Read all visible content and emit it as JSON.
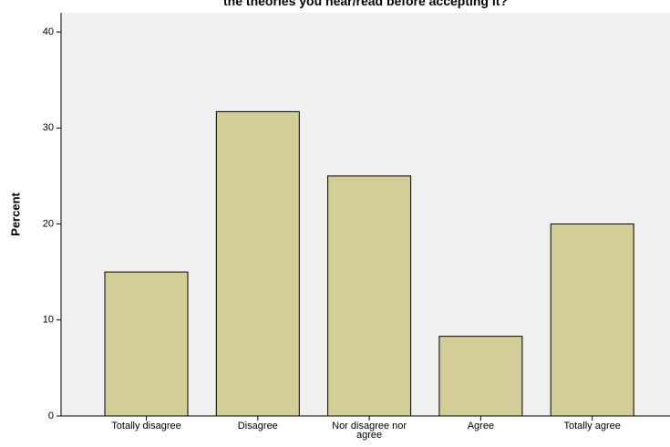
{
  "chart_data": {
    "type": "bar",
    "title": "the theories you hear/read before accepting it?",
    "y_label": "Percent",
    "categories": [
      "Totally disagree",
      "Disagree",
      "Nor disagree nor agree",
      "Agree",
      "Totally agree"
    ],
    "values": [
      15.0,
      31.7,
      25.0,
      8.3,
      20.0
    ],
    "color": "#d3ce97",
    "ylim": [
      0,
      42
    ],
    "yticks": [
      0,
      10,
      20,
      30,
      40
    ],
    "grid": false
  }
}
